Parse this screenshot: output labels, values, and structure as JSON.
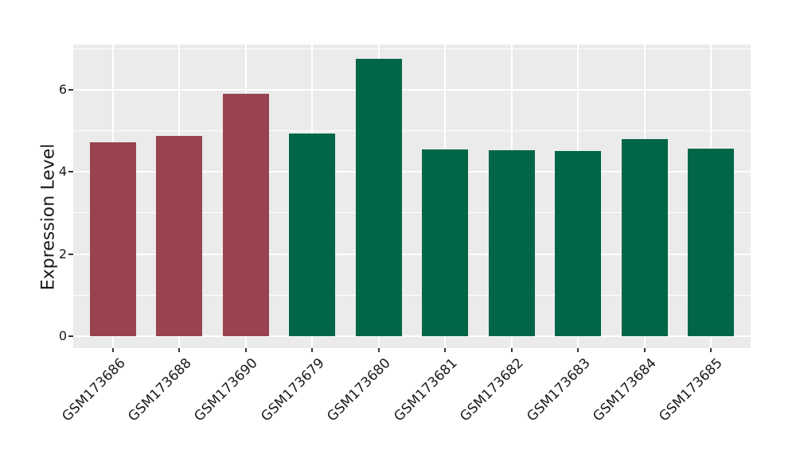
{
  "chart_data": {
    "type": "bar",
    "title": "",
    "xlabel": "",
    "ylabel": "Expression Level",
    "categories": [
      "GSM173686",
      "GSM173688",
      "GSM173690",
      "GSM173679",
      "GSM173680",
      "GSM173681",
      "GSM173682",
      "GSM173683",
      "GSM173684",
      "GSM173685"
    ],
    "values": [
      4.73,
      4.88,
      5.9,
      4.93,
      6.75,
      4.55,
      4.53,
      4.51,
      4.8,
      4.57
    ],
    "bar_colors": [
      "#9a4350",
      "#9a4350",
      "#9a4350",
      "#006647",
      "#006647",
      "#006647",
      "#006647",
      "#006647",
      "#006647",
      "#006647"
    ],
    "yticks": [
      0,
      2,
      4,
      6
    ],
    "yticks_minor": [
      1,
      3,
      5,
      7
    ],
    "ylim": [
      -0.34,
      7.08
    ],
    "grid": "on",
    "legend_position": "none",
    "panel_background": "#ebebeb",
    "grid_color": "#ffffff",
    "text_color": "#1a1a1a",
    "tick_color": "#333333"
  }
}
